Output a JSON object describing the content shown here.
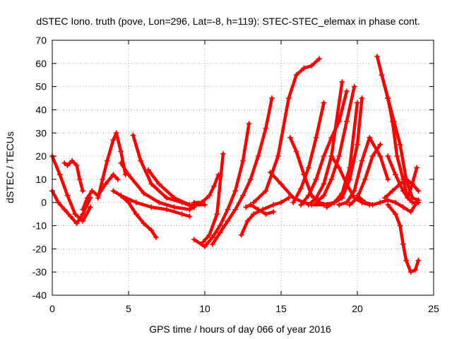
{
  "chart_data": {
    "type": "scatter",
    "title": "dSTEC Iono. truth (pove, Lon=296, Lat=-8, h=119): STEC-STEC_elemax in phase cont.",
    "xlabel": "GPS time / hours of day 066 of year 2016",
    "ylabel": "dSTEC  / TECUs",
    "xlim": [
      0,
      25
    ],
    "ylim": [
      -40,
      70
    ],
    "xticks": [
      0,
      5,
      10,
      15,
      20,
      25
    ],
    "yticks": [
      -40,
      -30,
      -20,
      -10,
      0,
      10,
      20,
      30,
      40,
      50,
      60,
      70
    ],
    "grid": true,
    "marker": "plus",
    "color": "#ff0000",
    "series": [
      {
        "x": [
          0.0,
          0.5,
          1.0,
          1.5,
          2.0,
          2.5
        ],
        "y": [
          20,
          12,
          3,
          -5,
          -8,
          -2
        ]
      },
      {
        "x": [
          0.0,
          0.4,
          0.8,
          1.2,
          1.6,
          2.0,
          2.5
        ],
        "y": [
          5,
          0,
          -3,
          -6,
          -9,
          -5,
          2
        ]
      },
      {
        "x": [
          0.8,
          1.0,
          1.3,
          1.6,
          1.8,
          2.0
        ],
        "y": [
          17,
          16,
          18,
          16,
          10,
          5
        ]
      },
      {
        "x": [
          2.0,
          2.3,
          2.6,
          3.0,
          3.5,
          4.0,
          4.3
        ],
        "y": [
          -3,
          2,
          5,
          3,
          8,
          12,
          10
        ]
      },
      {
        "x": [
          3.0,
          3.3,
          3.6,
          4.0,
          4.2,
          4.5,
          4.8
        ],
        "y": [
          2,
          10,
          18,
          27,
          30,
          22,
          12
        ]
      },
      {
        "x": [
          4.0,
          4.5,
          5.0,
          5.5,
          6.0,
          6.5,
          6.8
        ],
        "y": [
          5,
          3,
          0,
          -5,
          -9,
          -12,
          -15
        ]
      },
      {
        "x": [
          5.3,
          5.8,
          6.5,
          7.5,
          8.5,
          9.3
        ],
        "y": [
          29,
          18,
          8,
          2,
          0,
          -2
        ]
      },
      {
        "x": [
          4.5,
          5.0,
          6.0,
          7.0,
          8.0,
          9.0,
          9.3
        ],
        "y": [
          17,
          12,
          4,
          0,
          -2,
          -3,
          -2
        ]
      },
      {
        "x": [
          6.3,
          7.0,
          8.0,
          9.0,
          10.0
        ],
        "y": [
          14,
          8,
          2,
          -1,
          -1
        ]
      },
      {
        "x": [
          4.5,
          5.5,
          6.5,
          7.5,
          8.5,
          9.0
        ],
        "y": [
          3,
          0,
          -2,
          -3,
          -5,
          -6
        ]
      },
      {
        "x": [
          9.3,
          9.8,
          10.3,
          10.6,
          10.9
        ],
        "y": [
          0,
          0,
          3,
          7,
          12
        ]
      },
      {
        "x": [
          9.3,
          10.0,
          10.5,
          11.0,
          11.5,
          12.0,
          12.5,
          12.9
        ],
        "y": [
          -16,
          -19,
          -15,
          -10,
          -3,
          5,
          18,
          34
        ]
      },
      {
        "x": [
          10.5,
          11.0,
          11.5,
          12.0,
          12.5,
          13.0,
          13.5,
          14.0,
          14.4
        ],
        "y": [
          -18,
          -13,
          -8,
          -3,
          3,
          10,
          20,
          32,
          45
        ]
      },
      {
        "x": [
          9.9,
          10.3,
          10.8,
          11.2
        ],
        "y": [
          -17,
          -14,
          -5,
          21
        ]
      },
      {
        "x": [
          12.4,
          12.8,
          13.2,
          13.8,
          14.5,
          15.0,
          15.5
        ],
        "y": [
          -14,
          -8,
          -5,
          -3,
          -1,
          0,
          2
        ]
      },
      {
        "x": [
          12.7,
          13.0,
          13.5,
          14.0,
          14.5
        ],
        "y": [
          -2,
          -1,
          -3,
          -5,
          -4
        ]
      },
      {
        "x": [
          13.2,
          14.0,
          14.8,
          15.5,
          16.0,
          16.5,
          17.0,
          17.5
        ],
        "y": [
          0,
          5,
          20,
          45,
          55,
          58,
          59,
          62
        ]
      },
      {
        "x": [
          14.3,
          15.0,
          15.8,
          16.5,
          17.0,
          17.8,
          18.5,
          19.0
        ],
        "y": [
          13,
          8,
          2,
          0,
          -1,
          -1,
          0,
          2
        ]
      },
      {
        "x": [
          15.6,
          16.0,
          16.5,
          17.0,
          17.5,
          18.0
        ],
        "y": [
          28,
          22,
          12,
          3,
          0,
          -1
        ]
      },
      {
        "x": [
          15.8,
          16.3,
          16.8,
          17.3,
          17.8
        ],
        "y": [
          0,
          6,
          15,
          28,
          43
        ]
      },
      {
        "x": [
          16.3,
          16.8,
          17.3,
          17.8,
          18.3,
          18.8,
          19.3
        ],
        "y": [
          -1,
          3,
          10,
          20,
          28,
          35,
          48
        ]
      },
      {
        "x": [
          16.8,
          17.3,
          17.8,
          18.3,
          19.0
        ],
        "y": [
          -1,
          2,
          8,
          20,
          52
        ]
      },
      {
        "x": [
          17.3,
          17.8,
          18.3,
          18.8,
          19.3,
          19.8
        ],
        "y": [
          0,
          3,
          10,
          20,
          35,
          50
        ]
      },
      {
        "x": [
          18.0,
          18.5,
          19.0,
          19.5,
          20.0
        ],
        "y": [
          -2,
          0,
          4,
          15,
          43
        ]
      },
      {
        "x": [
          18.3,
          18.8,
          19.3,
          19.8,
          20.3,
          20.8
        ],
        "y": [
          20,
          15,
          8,
          2,
          0,
          -1
        ]
      },
      {
        "x": [
          18.8,
          19.3,
          19.8,
          20.3,
          20.8,
          21.5,
          22.0
        ],
        "y": [
          -1,
          0,
          5,
          18,
          28,
          20,
          10
        ]
      },
      {
        "x": [
          19.5,
          20.0,
          20.5,
          21.0,
          21.5
        ],
        "y": [
          -1,
          2,
          10,
          20,
          25
        ]
      },
      {
        "x": [
          19.0,
          19.5,
          20.0,
          20.3
        ],
        "y": [
          2,
          10,
          25,
          45
        ]
      },
      {
        "x": [
          20.0,
          20.5,
          21.0,
          21.5,
          22.0,
          22.5,
          23.0,
          23.5,
          23.9
        ],
        "y": [
          3,
          0,
          -1,
          0,
          1,
          0,
          -2,
          -4,
          0
        ]
      },
      {
        "x": [
          21.3,
          21.6,
          22.0,
          22.3,
          22.6,
          23.0,
          23.3,
          23.6,
          24.0
        ],
        "y": [
          63,
          55,
          45,
          35,
          20,
          10,
          2,
          0,
          0
        ]
      },
      {
        "x": [
          21.6,
          22.0,
          22.4,
          22.8,
          23.2,
          23.6,
          24.0
        ],
        "y": [
          55,
          45,
          35,
          25,
          10,
          2,
          1
        ]
      },
      {
        "x": [
          22.0,
          22.5,
          23.0,
          23.3,
          23.6,
          23.9
        ],
        "y": [
          20,
          12,
          5,
          2,
          8,
          15
        ]
      },
      {
        "x": [
          22.0,
          22.5,
          22.8,
          23.0,
          23.2,
          23.5,
          23.8,
          24.0
        ],
        "y": [
          -1,
          -5,
          -10,
          -18,
          -25,
          -30,
          -29,
          -25
        ]
      },
      {
        "x": [
          21.8,
          22.3,
          22.8,
          23.2,
          23.6,
          24.0
        ],
        "y": [
          2,
          5,
          8,
          10,
          8,
          5
        ]
      }
    ]
  }
}
